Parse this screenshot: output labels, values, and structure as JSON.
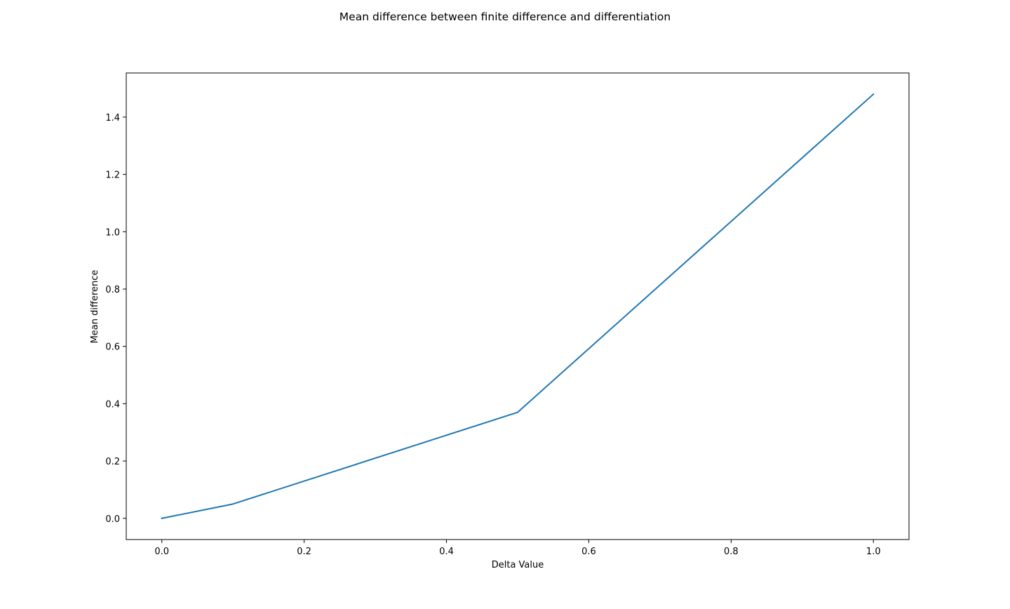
{
  "chart_data": {
    "type": "line",
    "title": "Mean difference between finite difference and differentiation",
    "xlabel": "Delta Value",
    "ylabel": "Mean difference",
    "xlim": [
      -0.05,
      1.05
    ],
    "ylim": [
      -0.074,
      1.554
    ],
    "xticks": [
      0.0,
      0.2,
      0.4,
      0.6,
      0.8,
      1.0
    ],
    "xtick_labels": [
      "0.0",
      "0.2",
      "0.4",
      "0.6",
      "0.8",
      "1.0"
    ],
    "yticks": [
      0.0,
      0.2,
      0.4,
      0.6,
      0.8,
      1.0,
      1.2,
      1.4
    ],
    "ytick_labels": [
      "0.0",
      "0.2",
      "0.4",
      "0.6",
      "0.8",
      "1.0",
      "1.2",
      "1.4"
    ],
    "grid": false,
    "legend": false,
    "series": [
      {
        "color": "#1f77b4",
        "x": [
          0.0,
          0.1,
          0.5,
          1.0
        ],
        "y": [
          0.0,
          0.05,
          0.37,
          1.48
        ]
      }
    ]
  }
}
